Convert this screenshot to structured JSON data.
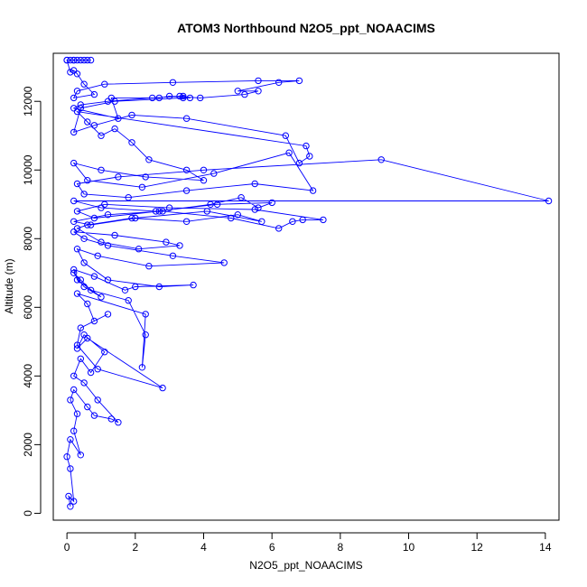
{
  "chart_data": {
    "type": "line",
    "title": "ATOM3 Northbound N2O5_ppt_NOAACIMS",
    "xlabel": "N2O5_ppt_NOAACIMS",
    "ylabel": "Altitude (m)",
    "xlim": [
      -0.4,
      14.4
    ],
    "ylim": [
      -200,
      13400
    ],
    "x_ticks": [
      0,
      2,
      4,
      6,
      8,
      10,
      12,
      14
    ],
    "y_ticks": [
      0,
      2000,
      4000,
      6000,
      8000,
      10000,
      12000
    ],
    "grid": false,
    "legend": "none",
    "series": [
      {
        "color": "#0000ff",
        "x": [
          0.1,
          0.05,
          0.2,
          0.1,
          0.0,
          0.1,
          0.4,
          0.2,
          0.3,
          0.1,
          0.2,
          0.6,
          0.8,
          1.3,
          1.5,
          0.9,
          0.5,
          0.2,
          0.4,
          0.7,
          1.1,
          0.5,
          0.3,
          0.6,
          2.8,
          0.9,
          0.3,
          0.4,
          1.2,
          0.8,
          0.6,
          0.3,
          2.3,
          2.2,
          2.3,
          1.8,
          0.7,
          0.4,
          0.2,
          0.5,
          1.0,
          0.3,
          0.2,
          0.8,
          1.7,
          2.0,
          3.7,
          2.7,
          1.2,
          0.5,
          0.3,
          0.9,
          2.4,
          4.6,
          3.1,
          1.2,
          0.5,
          0.2,
          1.4,
          2.9,
          3.3,
          2.1,
          1.0,
          0.3,
          0.6,
          1.9,
          3.5,
          5.0,
          5.7,
          4.1,
          2.0,
          0.7,
          0.2,
          1.2,
          2.8,
          4.8,
          6.2,
          6.6,
          6.9,
          7.5,
          5.5,
          3.0,
          1.1,
          0.3,
          0.8,
          2.7,
          4.2,
          5.1,
          5.6,
          6.0,
          4.4,
          2.6,
          1.0,
          0.2,
          14.1,
          9.2,
          4.0,
          1.5,
          0.3,
          0.5,
          1.8,
          3.5,
          5.5,
          7.2,
          6.5,
          4.3,
          2.2,
          0.6,
          0.2,
          1.0,
          2.3,
          4.0,
          3.5,
          2.4,
          1.9,
          1.4,
          1.0,
          0.6,
          0.3,
          7.0,
          7.1,
          6.8,
          6.4,
          3.5,
          1.9,
          0.8,
          0.2,
          0.4,
          1.4,
          3.4,
          3.6,
          3.4,
          3.3,
          2.5,
          1.2,
          0.4,
          0.2,
          1.5,
          1.3,
          2.7,
          3.0,
          3.9,
          5.2,
          5.6,
          5.0,
          6.2,
          6.8,
          5.6,
          3.1,
          1.1,
          0.3,
          0.2,
          0.8,
          0.5,
          0.3,
          0.2,
          0.1,
          0.0,
          0.2,
          0.7,
          0.6,
          0.5,
          0.4,
          0.3,
          0.2,
          0.1,
          0.0
        ],
        "y": [
          200,
          500,
          350,
          1300,
          1650,
          2150,
          1700,
          2400,
          2900,
          3300,
          3600,
          3100,
          2850,
          2750,
          2650,
          3300,
          3800,
          4000,
          4500,
          4100,
          4700,
          5200,
          4800,
          5100,
          3650,
          4200,
          4900,
          5400,
          5800,
          5600,
          6100,
          6400,
          5800,
          4250,
          5200,
          6200,
          6500,
          6800,
          7000,
          6600,
          6300,
          6800,
          7100,
          6900,
          6500,
          6600,
          6650,
          6600,
          6800,
          7300,
          7700,
          7500,
          7200,
          7300,
          7500,
          7800,
          8000,
          8200,
          8100,
          7900,
          7800,
          7700,
          7900,
          8300,
          8400,
          8600,
          8500,
          8700,
          8500,
          8800,
          8600,
          8400,
          8500,
          8700,
          8800,
          8600,
          8300,
          8500,
          8550,
          8550,
          8850,
          8900,
          9000,
          8800,
          8600,
          8800,
          9000,
          9200,
          8900,
          9050,
          9000,
          8800,
          8900,
          9100,
          9100,
          10300,
          10000,
          9800,
          9600,
          9300,
          9200,
          9400,
          9600,
          9400,
          10500,
          9900,
          9500,
          9700,
          10200,
          10000,
          9800,
          9700,
          10000,
          10300,
          10800,
          11200,
          11000,
          11400,
          11700,
          10700,
          10400,
          10200,
          11000,
          11500,
          11600,
          11300,
          11100,
          11800,
          12000,
          12100,
          12100,
          12150,
          12150,
          12100,
          12000,
          11900,
          11800,
          11500,
          12100,
          12100,
          12150,
          12100,
          12200,
          12300,
          12300,
          12550,
          12600,
          12600,
          12550,
          12500,
          12300,
          12100,
          12200,
          12500,
          12800,
          12900,
          12850,
          13200,
          13200,
          13200,
          13200,
          13200,
          13200,
          13200,
          13200,
          13200,
          13200
        ]
      }
    ]
  }
}
